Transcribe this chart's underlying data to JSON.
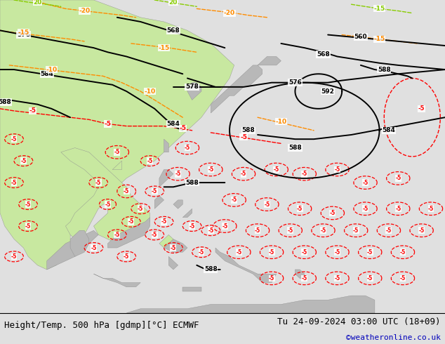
{
  "title_left": "Height/Temp. 500 hPa [gdmp][°C] ECMWF",
  "title_right": "Tu 24-09-2024 03:00 UTC (18+09)",
  "credit": "©weatheronline.co.uk",
  "bg_color": "#e0e0e0",
  "land_green": "#c8e8a0",
  "land_gray": "#b8b8b8",
  "sea_color": "#dcdcdc",
  "height_line_color": "#000000",
  "temp_negative_color": "#ff0000",
  "temp_positive_color": "#ff8c00",
  "temp_green_color": "#88cc00",
  "font_size_title": 9,
  "font_size_credit": 8,
  "lon_min": 85,
  "lon_max": 180,
  "lat_min": -15,
  "lat_max": 57
}
